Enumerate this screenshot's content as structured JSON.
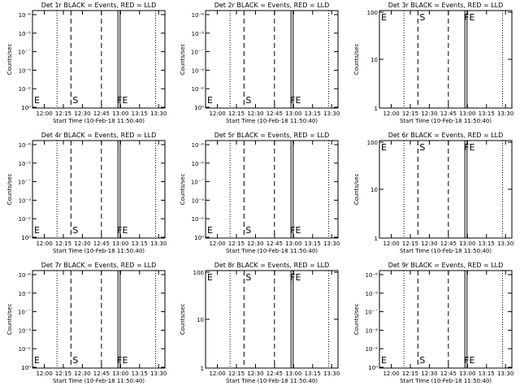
{
  "figure": {
    "time_ticks": [
      "12:00",
      "12:15",
      "12:30",
      "12:45",
      "13:00",
      "13:15",
      "13:30"
    ],
    "xlabel": "Start Time (10-Feb-18 11:50:40)",
    "ylabel": "Counts/sec",
    "markers": {
      "E": "E",
      "S": "S",
      "FE": "FE"
    }
  },
  "chart_data": [
    {
      "type": "line",
      "title": "Det 1r BLACK = Events, RED = LLD",
      "yscale": "log",
      "ylim": [
        0.99,
        1.01
      ],
      "ytick_labels": [
        "10⁰",
        "10⁻²",
        "10⁻³",
        "10⁻´",
        "10⁻⁵",
        "10⁻⁶"
      ],
      "series": []
    },
    {
      "type": "line",
      "title": "Det 2r BLACK = Events, RED = LLD",
      "yscale": "log",
      "ylim": [
        0.99,
        1.01
      ],
      "ytick_labels": [
        "10⁰",
        "10⁻²",
        "10⁻³",
        "10⁻´",
        "10⁻⁵",
        "10⁻⁶"
      ],
      "series": []
    },
    {
      "type": "line",
      "title": "Det 3r BLACK = Events, RED = LLD",
      "yscale": "log",
      "ylim": [
        1,
        100
      ],
      "ytick_labels": [
        "1",
        "10",
        "100"
      ],
      "series": []
    },
    {
      "type": "line",
      "title": "Det 4r BLACK = Events, RED = LLD",
      "yscale": "log",
      "ylim": [
        0.99,
        1.01
      ],
      "ytick_labels": [
        "10⁰",
        "10⁻²",
        "10⁻³",
        "10⁻´",
        "10⁻⁵",
        "10⁻⁶"
      ],
      "series": []
    },
    {
      "type": "line",
      "title": "Det 5r BLACK = Events, RED = LLD",
      "yscale": "log",
      "ylim": [
        0.99,
        1.01
      ],
      "ytick_labels": [
        "10⁰",
        "10⁻²",
        "10⁻³",
        "10⁻´",
        "10⁻⁵",
        "10⁻⁶"
      ],
      "series": []
    },
    {
      "type": "line",
      "title": "Det 6r BLACK = Events, RED = LLD",
      "yscale": "log",
      "ylim": [
        1,
        100
      ],
      "ytick_labels": [
        "1",
        "10",
        "100"
      ],
      "series": []
    },
    {
      "type": "line",
      "title": "Det 7r BLACK = Events, RED = LLD",
      "yscale": "log",
      "ylim": [
        0.99,
        1.01
      ],
      "ytick_labels": [
        "10⁰",
        "10⁻²",
        "10⁻³",
        "10⁻´",
        "10⁻⁵",
        "10⁻⁶"
      ],
      "series": []
    },
    {
      "type": "line",
      "title": "Det 8r BLACK = Events, RED = LLD",
      "yscale": "log",
      "ylim": [
        1,
        100
      ],
      "ytick_labels": [
        "1",
        "10",
        "100"
      ],
      "series": []
    },
    {
      "type": "line",
      "title": "Det 9r BLACK = Events, RED = LLD",
      "yscale": "log",
      "ylim": [
        0.99,
        1.01
      ],
      "ytick_labels": [
        "10⁰",
        "10⁻²",
        "10⁻³",
        "10⁻´",
        "10⁻⁵",
        "10⁻⁶"
      ],
      "series": []
    }
  ]
}
